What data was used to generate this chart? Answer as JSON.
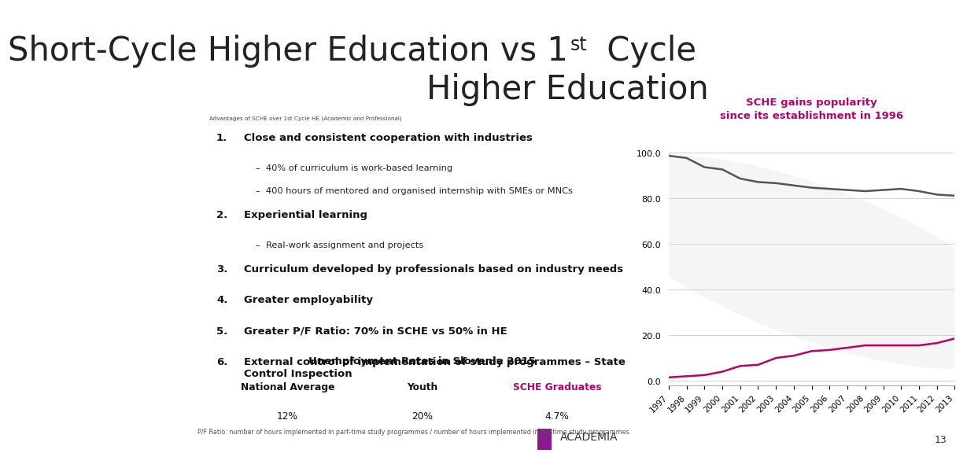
{
  "title_line1": "Short-Cycle Higher Education vs 1",
  "title_superscript": "st",
  "title_line2": " Cycle",
  "title_line3": "Higher Education",
  "bg_color": "#ffffff",
  "title_color": "#222222",
  "header_bar_color": "#2e3a8c",
  "footer_bar_color": "#2e3a8c",
  "advantages_header": "Advantages of SCHE over 1st Cycle HE (Academic and Professional)",
  "advantages": [
    {
      "num": "1.",
      "bold": "Close and consistent cooperation with industries",
      "subs": [
        "40% of curriculum is work-based learning",
        "400 hours of mentored and organised internship with SMEs or MNCs"
      ]
    },
    {
      "num": "2.",
      "bold": "Experiential learning",
      "subs": [
        "Real-work assignment and projects"
      ]
    },
    {
      "num": "3.",
      "bold": "Curriculum developed by professionals based on industry needs",
      "subs": []
    },
    {
      "num": "4.",
      "bold": "Greater employability",
      "subs": []
    },
    {
      "num": "5.",
      "bold": "Greater P/F Ratio: 70% in SCHE vs 50% in HE",
      "subs": []
    },
    {
      "num": "6.",
      "bold": "External control of implementation of study programmes – State\nControl Inspection",
      "subs": []
    }
  ],
  "unemployment_title": "Unemployment Rates in Slovenia 2015",
  "unemployment_cols": [
    "National Average",
    "Youth",
    "SCHE Graduates"
  ],
  "unemployment_vals": [
    "12%",
    "20%",
    "4.7%"
  ],
  "sche_graduates_color": "#b5006e",
  "footnote": "P/F Ratio: number of hours implemented in part-time study programmes / number of hours implemented in full-time study programmes",
  "chart_title": "SCHE gains popularity\nsince its establishment in 1996",
  "chart_title_color": "#b5006e",
  "years": [
    1997,
    1998,
    1999,
    2000,
    2001,
    2002,
    2003,
    2004,
    2005,
    2006,
    2007,
    2008,
    2009,
    2010,
    2011,
    2012,
    2013
  ],
  "line1_data": [
    98.5,
    97.5,
    93.5,
    92.5,
    88.5,
    87.0,
    86.5,
    85.5,
    84.5,
    84.0,
    83.5,
    83.0,
    83.5,
    84.0,
    83.0,
    81.5,
    81.0
  ],
  "line1_color": "#555555",
  "line2_data": [
    1.5,
    2.0,
    2.5,
    4.0,
    6.5,
    7.0,
    10.0,
    11.0,
    13.0,
    13.5,
    14.5,
    15.5,
    15.5,
    15.5,
    15.5,
    16.5,
    18.5
  ],
  "line2_color": "#b5006e",
  "page_number": "13",
  "academia_text": "ACADEMIA",
  "academia_icon_color": "#8B1A8B"
}
